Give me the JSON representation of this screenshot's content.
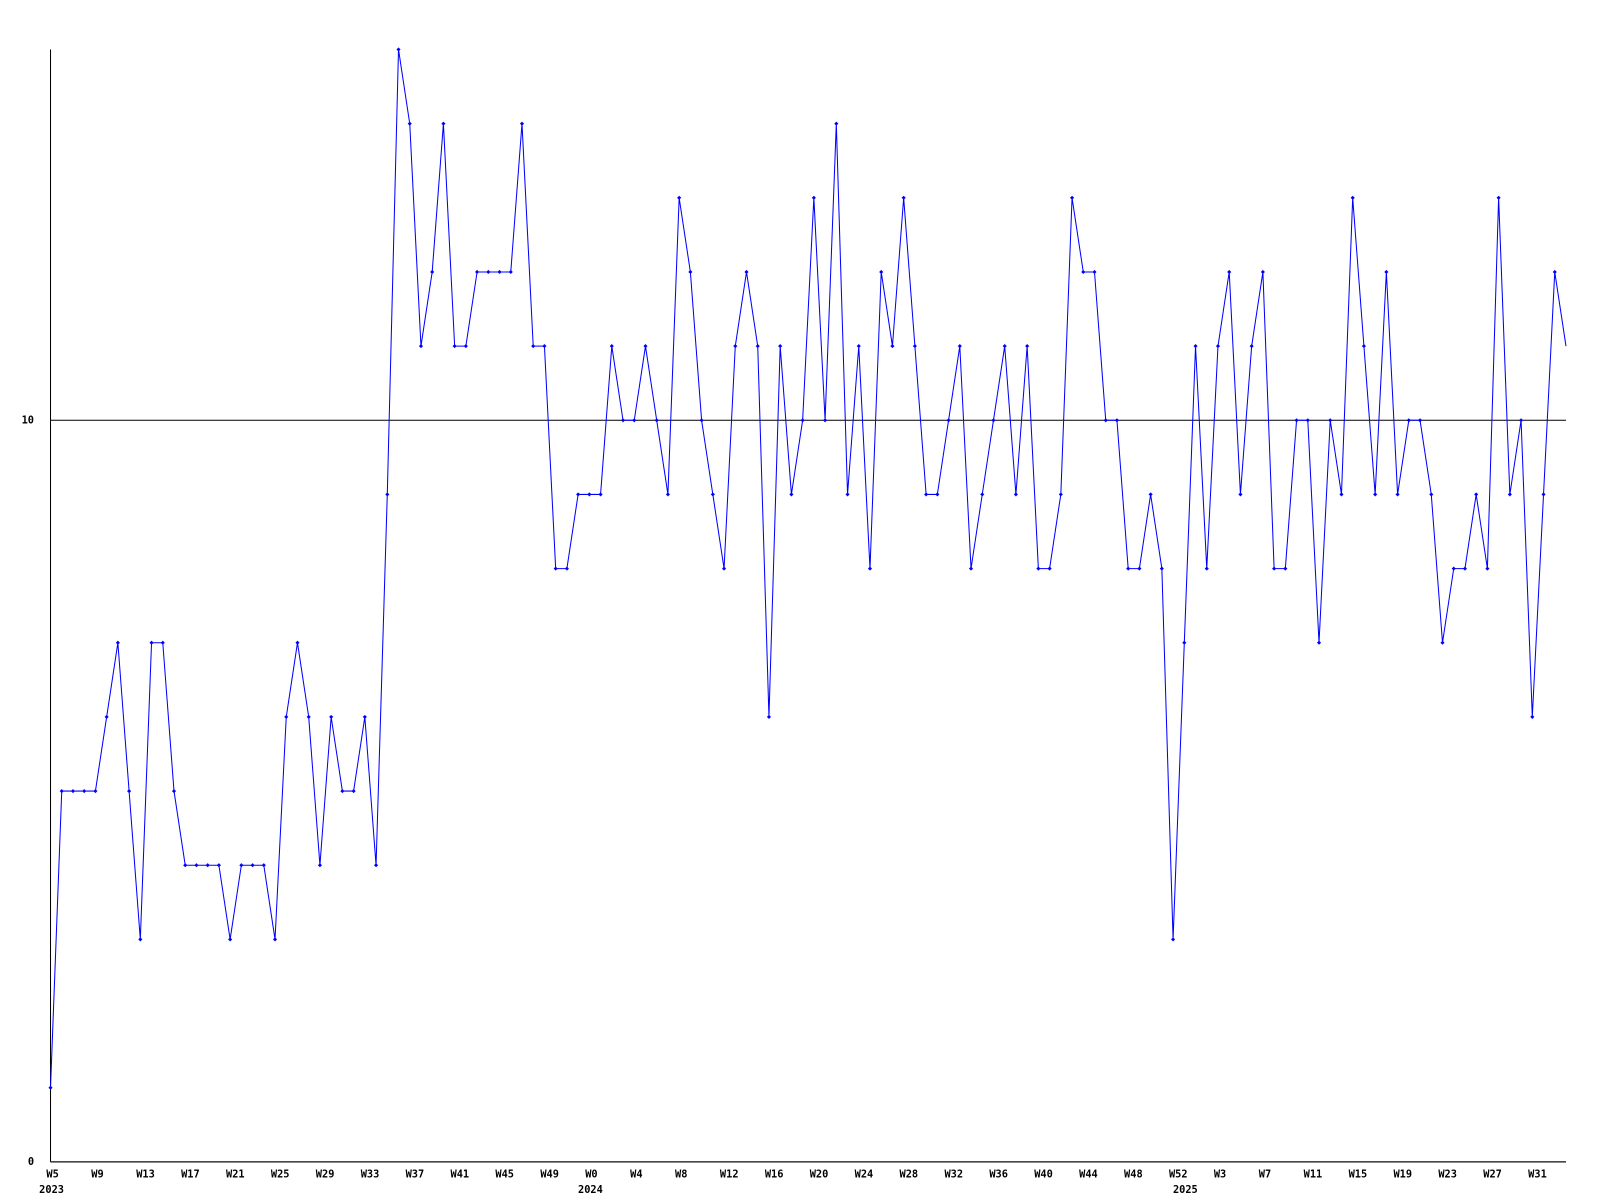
{
  "chart_data": {
    "type": "line",
    "categories": [
      "W5",
      null,
      null,
      null,
      "W9",
      null,
      null,
      null,
      "W13",
      null,
      null,
      null,
      "W17",
      null,
      null,
      null,
      "W21",
      null,
      null,
      null,
      "W25",
      null,
      null,
      null,
      "W29",
      null,
      null,
      null,
      "W33",
      null,
      null,
      null,
      "W37",
      null,
      null,
      null,
      "W41",
      null,
      null,
      null,
      "W45",
      null,
      null,
      null,
      "W49",
      null,
      null,
      null,
      "W0",
      null,
      null,
      null,
      "W4",
      null,
      null,
      null,
      "W8",
      null,
      null,
      null,
      "W12",
      null,
      null,
      null,
      "W16",
      null,
      null,
      null,
      "W20",
      null,
      null,
      null,
      "W24",
      null,
      null,
      null,
      "W28",
      null,
      null,
      null,
      "W32",
      null,
      null,
      null,
      "W36",
      null,
      null,
      null,
      "W40",
      null,
      null,
      null,
      "W44",
      null,
      null,
      null,
      "W48",
      null,
      null,
      null,
      "W52",
      null,
      null,
      null,
      "W3",
      null,
      null,
      null,
      "W7",
      null,
      null,
      null,
      "W11",
      null,
      null,
      null,
      "W15",
      null,
      null,
      null,
      "W19",
      null,
      null,
      null,
      "W23",
      null,
      null,
      null,
      "W27",
      null,
      null,
      null,
      "W31",
      null,
      null,
      null
    ],
    "category_years": [
      "2023",
      null,
      null,
      null,
      null,
      null,
      null,
      null,
      null,
      null,
      null,
      null,
      null,
      null,
      null,
      null,
      null,
      null,
      null,
      null,
      null,
      null,
      null,
      null,
      null,
      null,
      null,
      null,
      null,
      null,
      null,
      null,
      null,
      null,
      null,
      null,
      null,
      null,
      null,
      null,
      null,
      null,
      null,
      null,
      null,
      null,
      null,
      null,
      "2024",
      null,
      null,
      null,
      null,
      null,
      null,
      null,
      null,
      null,
      null,
      null,
      null,
      null,
      null,
      null,
      null,
      null,
      null,
      null,
      null,
      null,
      null,
      null,
      null,
      null,
      null,
      null,
      null,
      null,
      null,
      null,
      null,
      null,
      null,
      null,
      null,
      null,
      null,
      null,
      null,
      null,
      null,
      null,
      null,
      null,
      null,
      null,
      null,
      null,
      null,
      null,
      null,
      "2025",
      null,
      null,
      null,
      null,
      null,
      null,
      null,
      null,
      null,
      null,
      null,
      null,
      null,
      null,
      null,
      null,
      null,
      null,
      null,
      null,
      null,
      null,
      null,
      null,
      null,
      null,
      null,
      null,
      null,
      null,
      null,
      null,
      null,
      null
    ],
    "series": [
      {
        "color": "#0000ff",
        "values": [
          1,
          5,
          5,
          5,
          5,
          6,
          7,
          5,
          3,
          7,
          7,
          5,
          4,
          4,
          4,
          4,
          3,
          4,
          4,
          4,
          3,
          6,
          7,
          6,
          4,
          6,
          5,
          5,
          6,
          4,
          9,
          15,
          14,
          11,
          12,
          14,
          11,
          11,
          12,
          12,
          12,
          12,
          14,
          11,
          11,
          8,
          8,
          9,
          9,
          9,
          11,
          10,
          10,
          11,
          10,
          9,
          13,
          12,
          10,
          9,
          8,
          11,
          12,
          11,
          6,
          11,
          9,
          10,
          13,
          10,
          14,
          9,
          11,
          8,
          12,
          11,
          13,
          11,
          9,
          9,
          10,
          11,
          8,
          9,
          10,
          11,
          9,
          11,
          8,
          8,
          9,
          13,
          12,
          12,
          10,
          10,
          8,
          8,
          9,
          8,
          3,
          7,
          11,
          8,
          11,
          12,
          9,
          11,
          12,
          8,
          8,
          10,
          10,
          7,
          10,
          9,
          13,
          11,
          9,
          12,
          9,
          10,
          10,
          9,
          7,
          8,
          8,
          9,
          8,
          13,
          9,
          10,
          6,
          9,
          12,
          11
        ]
      }
    ],
    "ylim": [
      0,
      15
    ],
    "yticks": [
      0,
      10
    ],
    "grid": true
  }
}
